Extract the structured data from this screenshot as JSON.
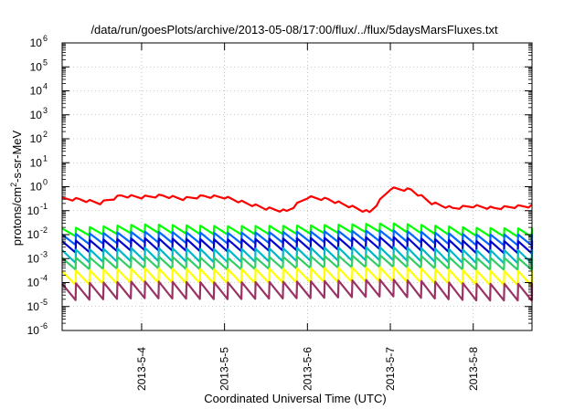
{
  "chart_data": {
    "type": "line",
    "title": "/data/run/goesPlots/archive/2013-05-08/17:00/flux/../flux/5daysMarsFluxes.txt",
    "xlabel": "Coordinated Universal Time (UTC)",
    "ylabel": "protons/cm²-s-sr-MeV",
    "y_scale": "log",
    "ylim": [
      1e-06,
      1000000.0
    ],
    "y_ticks": [
      {
        "base": "10",
        "exp": "-6"
      },
      {
        "base": "10",
        "exp": "-5"
      },
      {
        "base": "10",
        "exp": "-4"
      },
      {
        "base": "10",
        "exp": "-3"
      },
      {
        "base": "10",
        "exp": "-2"
      },
      {
        "base": "10",
        "exp": "-1"
      },
      {
        "base": "10",
        "exp": "0"
      },
      {
        "base": "10",
        "exp": "1"
      },
      {
        "base": "10",
        "exp": "2"
      },
      {
        "base": "10",
        "exp": "3"
      },
      {
        "base": "10",
        "exp": "4"
      },
      {
        "base": "10",
        "exp": "5"
      },
      {
        "base": "10",
        "exp": "6"
      }
    ],
    "x_ticks": [
      "2013-5-4",
      "2013-5-5",
      "2013-5-6",
      "2013-5-7",
      "2013-5-8"
    ],
    "xlim": [
      "2013-05-03 01:00",
      "2013-05-08 17:00"
    ],
    "grid": true,
    "legend": "none",
    "series": [
      {
        "color": "#ff0000",
        "x": [
          "2013-05-03 01:00",
          "2013-05-03 06:00",
          "2013-05-03 12:00",
          "2013-05-03 18:00",
          "2013-05-04 00:00",
          "2013-05-04 06:00",
          "2013-05-04 12:00",
          "2013-05-04 18:00",
          "2013-05-05 00:00",
          "2013-05-05 06:00",
          "2013-05-05 12:00",
          "2013-05-05 18:00",
          "2013-05-06 00:00",
          "2013-05-06 06:00",
          "2013-05-06 12:00",
          "2013-05-06 18:00",
          "2013-05-07 00:00",
          "2013-05-07 06:00",
          "2013-05-07 12:00",
          "2013-05-07 18:00",
          "2013-05-08 00:00",
          "2013-05-08 06:00",
          "2013-05-08 12:00",
          "2013-05-08 17:00"
        ],
        "values": [
          0.3,
          0.28,
          0.2,
          0.4,
          0.35,
          0.4,
          0.3,
          0.38,
          0.35,
          0.2,
          0.12,
          0.09,
          0.35,
          0.28,
          0.15,
          0.08,
          0.8,
          0.7,
          0.2,
          0.12,
          0.15,
          0.12,
          0.14,
          0.15
        ]
      },
      {
        "color": "#00ff00",
        "x": [
          "2013-05-03 01:00",
          "2013-05-04 00:00",
          "2013-05-05 00:00",
          "2013-05-06 00:00",
          "2013-05-07 00:00",
          "2013-05-08 00:00",
          "2013-05-08 17:00"
        ],
        "values": [
          0.012,
          0.018,
          0.015,
          0.016,
          0.02,
          0.013,
          0.012
        ]
      },
      {
        "color": "#0066ff",
        "x": [
          "2013-05-03 01:00",
          "2013-05-04 00:00",
          "2013-05-05 00:00",
          "2013-05-06 00:00",
          "2013-05-07 00:00",
          "2013-05-08 00:00",
          "2013-05-08 17:00"
        ],
        "values": [
          0.006,
          0.008,
          0.007,
          0.008,
          0.009,
          0.006,
          0.006
        ]
      },
      {
        "color": "#0000cc",
        "x": [
          "2013-05-03 01:00",
          "2013-05-04 00:00",
          "2013-05-05 00:00",
          "2013-05-06 00:00",
          "2013-05-07 00:00",
          "2013-05-08 00:00",
          "2013-05-08 17:00"
        ],
        "values": [
          0.003,
          0.004,
          0.0035,
          0.004,
          0.0045,
          0.003,
          0.003
        ]
      },
      {
        "color": "#00b8c8",
        "x": [
          "2013-05-03 01:00",
          "2013-05-04 00:00",
          "2013-05-05 00:00",
          "2013-05-06 00:00",
          "2013-05-07 00:00",
          "2013-05-08 00:00",
          "2013-05-08 17:00"
        ],
        "values": [
          0.0012,
          0.0015,
          0.0013,
          0.0015,
          0.0016,
          0.0012,
          0.0012
        ]
      },
      {
        "color": "#33cc66",
        "x": [
          "2013-05-03 01:00",
          "2013-05-04 00:00",
          "2013-05-05 00:00",
          "2013-05-06 00:00",
          "2013-05-07 00:00",
          "2013-05-08 00:00",
          "2013-05-08 17:00"
        ],
        "values": [
          0.0006,
          0.0007,
          0.0006,
          0.0007,
          0.0008,
          0.0006,
          0.0006
        ]
      },
      {
        "color": "#ffff00",
        "x": [
          "2013-05-03 01:00",
          "2013-05-04 00:00",
          "2013-05-05 00:00",
          "2013-05-06 00:00",
          "2013-05-07 00:00",
          "2013-05-08 00:00",
          "2013-05-08 17:00"
        ],
        "values": [
          0.00015,
          0.0002,
          0.00018,
          0.0002,
          0.00022,
          0.00016,
          0.00015
        ]
      },
      {
        "color": "#993366",
        "x": [
          "2013-05-03 01:00",
          "2013-05-04 00:00",
          "2013-05-05 00:00",
          "2013-05-06 00:00",
          "2013-05-07 00:00",
          "2013-05-08 00:00",
          "2013-05-08 17:00"
        ],
        "values": [
          4e-05,
          5e-05,
          4.5e-05,
          5e-05,
          6e-05,
          4e-05,
          4e-05
        ]
      }
    ]
  }
}
